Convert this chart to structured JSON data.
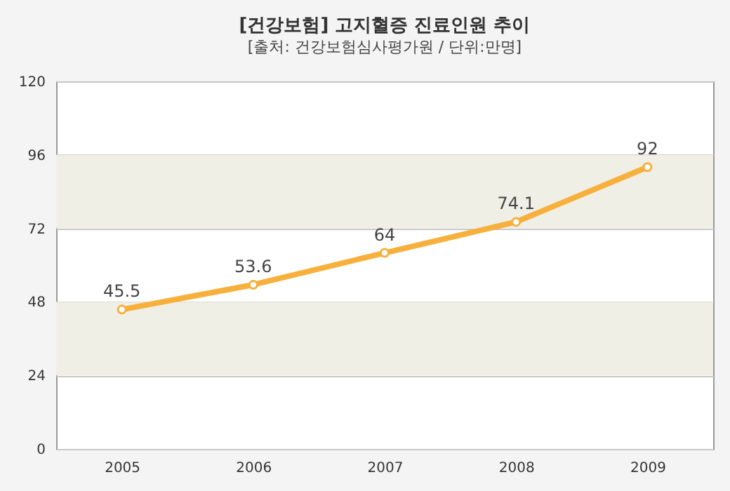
{
  "chart_data": {
    "type": "line",
    "title": "[건강보험] 고지혈증 진료인원 추이",
    "subtitle": "[출처: 건강보험심사평가원 / 단위:만명]",
    "categories": [
      "2005",
      "2006",
      "2007",
      "2008",
      "2009"
    ],
    "series": [
      {
        "color": "#f7b03c",
        "values": [
          45.5,
          53.6,
          64,
          74.1,
          92
        ]
      }
    ],
    "ylim": [
      0,
      120
    ],
    "yticks": [
      0,
      24,
      48,
      72,
      96,
      120
    ],
    "grid": "y",
    "marker": "circle",
    "line_style": "solid",
    "data_labels": true,
    "bands": [
      {
        "axis": "y",
        "from": 24,
        "to": 48,
        "color": "#f0efe6"
      },
      {
        "axis": "y",
        "from": 72,
        "to": 96,
        "color": "#f0efe6"
      }
    ]
  }
}
